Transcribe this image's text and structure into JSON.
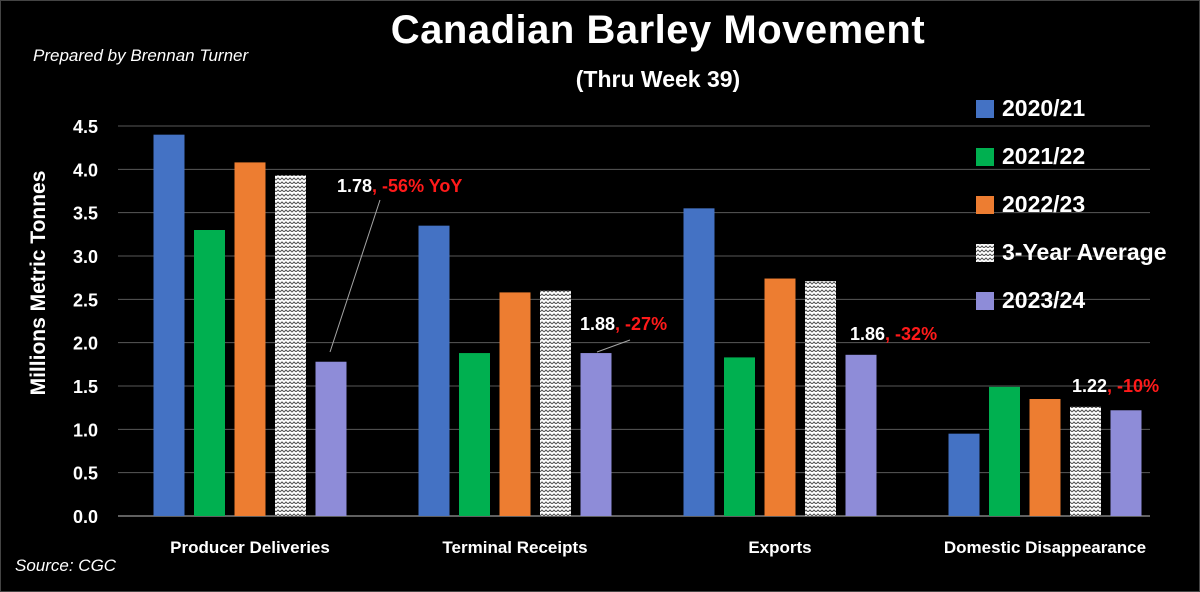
{
  "title": "Canadian Barley Movement",
  "subtitle": "(Thru Week 39)",
  "credit": "Prepared by Brennan Turner",
  "source": "Source: CGC",
  "colors": {
    "2020/21": "#4472c4",
    "2021/22": "#00b050",
    "2022/23": "#ed7d31",
    "3-Year Average": "pattern-white-zigzag",
    "2023/24": "#8e8cd8",
    "annotation_highlight": "#ff1a1a"
  },
  "chart_data": {
    "type": "bar",
    "title": "Canadian Barley Movement",
    "subtitle": "(Thru Week 39)",
    "xlabel": "",
    "ylabel": "Millions Metric Tonnes",
    "ylim": [
      0,
      4.5
    ],
    "yticks": [
      "0.0",
      "0.5",
      "1.0",
      "1.5",
      "2.0",
      "2.5",
      "3.0",
      "3.5",
      "4.0",
      "4.5"
    ],
    "grid": true,
    "legend_position": "right",
    "categories": [
      "Producer Deliveries",
      "Terminal Receipts",
      "Exports",
      "Domestic Disappearance"
    ],
    "series": [
      {
        "name": "2020/21",
        "values": [
          4.4,
          3.35,
          3.55,
          0.95
        ]
      },
      {
        "name": "2021/22",
        "values": [
          3.3,
          1.88,
          1.83,
          1.49
        ]
      },
      {
        "name": "2022/23",
        "values": [
          4.08,
          2.58,
          2.74,
          1.35
        ]
      },
      {
        "name": "3-Year Average",
        "values": [
          3.93,
          2.6,
          2.71,
          1.26
        ]
      },
      {
        "name": "2023/24",
        "values": [
          1.78,
          1.88,
          1.86,
          1.22
        ]
      }
    ],
    "annotations": [
      {
        "category": "Producer Deliveries",
        "value": "1.78",
        "change": ", -56% YoY"
      },
      {
        "category": "Terminal Receipts",
        "value": "1.88",
        "change": ", -27%"
      },
      {
        "category": "Exports",
        "value": "1.86",
        "change": ", -32%"
      },
      {
        "category": "Domestic Disappearance",
        "value": "1.22",
        "change": ", -10%"
      }
    ]
  }
}
